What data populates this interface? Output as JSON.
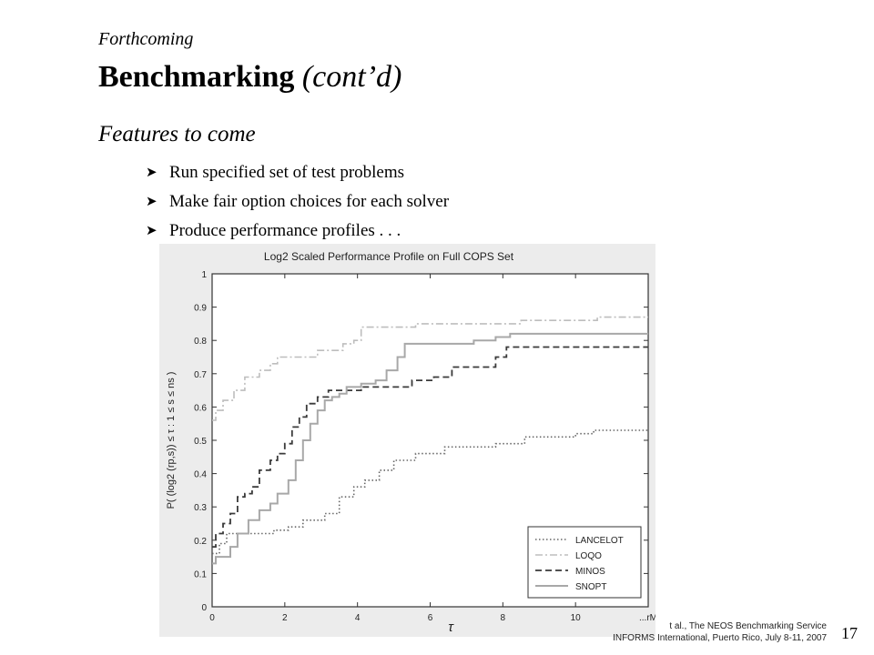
{
  "slide": {
    "kicker": "Forthcoming",
    "title": "Benchmarking",
    "title_suffix": "(cont’d)",
    "subheading": "Features to come",
    "bullets": [
      "Run specified set of test problems",
      "Make fair option choices for each solver",
      "Produce performance profiles . . ."
    ],
    "footer_line1": "t al., The NEOS Benchmarking Service",
    "footer_line2": "INFORMS International, Puerto Rico, July 8-11, 2007",
    "page_number": "17"
  },
  "chart_data": {
    "type": "line",
    "step": true,
    "title": "Log2 Scaled Performance Profile on Full COPS Set",
    "xlabel": "τ",
    "ylabel": "P( (log2 (rp,s)) ≤ τ : 1 ≤ s ≤ ns )",
    "xlim": [
      0,
      12
    ],
    "ylim": [
      0,
      1
    ],
    "xticks": [
      "0",
      "2",
      "4",
      "6",
      "8",
      "10"
    ],
    "xtick_last": "...rM",
    "yticks": [
      "0",
      "0.1",
      "0.2",
      "0.3",
      "0.4",
      "0.5",
      "0.6",
      "0.7",
      "0.8",
      "0.9",
      "1"
    ],
    "legend_position": "bottom-right",
    "series": [
      {
        "name": "LANCELOT",
        "color": "#666666",
        "dash": "1.5,2.5",
        "width": 1.6,
        "points": [
          [
            0,
            0.16
          ],
          [
            0.2,
            0.19
          ],
          [
            0.4,
            0.22
          ],
          [
            1.2,
            0.22
          ],
          [
            1.7,
            0.23
          ],
          [
            2.1,
            0.24
          ],
          [
            2.5,
            0.26
          ],
          [
            3.1,
            0.28
          ],
          [
            3.5,
            0.33
          ],
          [
            3.9,
            0.36
          ],
          [
            4.2,
            0.38
          ],
          [
            4.6,
            0.41
          ],
          [
            5.0,
            0.44
          ],
          [
            5.6,
            0.46
          ],
          [
            6.4,
            0.48
          ],
          [
            7.3,
            0.48
          ],
          [
            7.8,
            0.49
          ],
          [
            8.6,
            0.51
          ],
          [
            9.4,
            0.51
          ],
          [
            10.0,
            0.52
          ],
          [
            10.5,
            0.53
          ],
          [
            12,
            0.53
          ]
        ]
      },
      {
        "name": "LOQO",
        "color": "#bdbdbd",
        "dash": "8,3,2,3",
        "width": 1.6,
        "points": [
          [
            0,
            0.56
          ],
          [
            0.1,
            0.59
          ],
          [
            0.3,
            0.62
          ],
          [
            0.6,
            0.65
          ],
          [
            0.9,
            0.69
          ],
          [
            1.3,
            0.71
          ],
          [
            1.6,
            0.73
          ],
          [
            1.8,
            0.75
          ],
          [
            2.3,
            0.75
          ],
          [
            2.6,
            0.75
          ],
          [
            2.9,
            0.77
          ],
          [
            3.4,
            0.77
          ],
          [
            3.6,
            0.79
          ],
          [
            3.9,
            0.8
          ],
          [
            4.1,
            0.84
          ],
          [
            5.0,
            0.84
          ],
          [
            5.6,
            0.85
          ],
          [
            6.8,
            0.85
          ],
          [
            8.5,
            0.86
          ],
          [
            9.8,
            0.86
          ],
          [
            10.6,
            0.87
          ],
          [
            12,
            0.87
          ]
        ]
      },
      {
        "name": "MINOS",
        "color": "#3a3a3a",
        "dash": "7,4",
        "width": 1.8,
        "points": [
          [
            0,
            0.18
          ],
          [
            0.1,
            0.22
          ],
          [
            0.3,
            0.25
          ],
          [
            0.5,
            0.28
          ],
          [
            0.7,
            0.33
          ],
          [
            0.9,
            0.34
          ],
          [
            1.1,
            0.36
          ],
          [
            1.3,
            0.41
          ],
          [
            1.6,
            0.44
          ],
          [
            1.8,
            0.46
          ],
          [
            2.0,
            0.49
          ],
          [
            2.2,
            0.54
          ],
          [
            2.4,
            0.57
          ],
          [
            2.6,
            0.61
          ],
          [
            2.9,
            0.63
          ],
          [
            3.2,
            0.65
          ],
          [
            3.5,
            0.65
          ],
          [
            4.1,
            0.66
          ],
          [
            4.4,
            0.66
          ],
          [
            5.2,
            0.66
          ],
          [
            5.5,
            0.68
          ],
          [
            6.1,
            0.69
          ],
          [
            6.6,
            0.72
          ],
          [
            7.3,
            0.72
          ],
          [
            7.8,
            0.75
          ],
          [
            8.1,
            0.78
          ],
          [
            12,
            0.78
          ]
        ]
      },
      {
        "name": "SNOPT",
        "color": "#a8a8a8",
        "dash": "",
        "width": 2,
        "points": [
          [
            0,
            0.13
          ],
          [
            0.1,
            0.15
          ],
          [
            0.5,
            0.18
          ],
          [
            0.7,
            0.22
          ],
          [
            1.0,
            0.26
          ],
          [
            1.3,
            0.29
          ],
          [
            1.6,
            0.31
          ],
          [
            1.8,
            0.34
          ],
          [
            2.1,
            0.38
          ],
          [
            2.3,
            0.44
          ],
          [
            2.5,
            0.5
          ],
          [
            2.7,
            0.55
          ],
          [
            2.9,
            0.59
          ],
          [
            3.1,
            0.62
          ],
          [
            3.3,
            0.63
          ],
          [
            3.5,
            0.64
          ],
          [
            3.7,
            0.66
          ],
          [
            4.1,
            0.67
          ],
          [
            4.5,
            0.68
          ],
          [
            4.8,
            0.71
          ],
          [
            5.1,
            0.75
          ],
          [
            5.3,
            0.79
          ],
          [
            6.2,
            0.79
          ],
          [
            7.2,
            0.8
          ],
          [
            7.8,
            0.81
          ],
          [
            8.2,
            0.82
          ],
          [
            9.5,
            0.82
          ],
          [
            10.8,
            0.82
          ],
          [
            12,
            0.82
          ]
        ]
      }
    ]
  }
}
